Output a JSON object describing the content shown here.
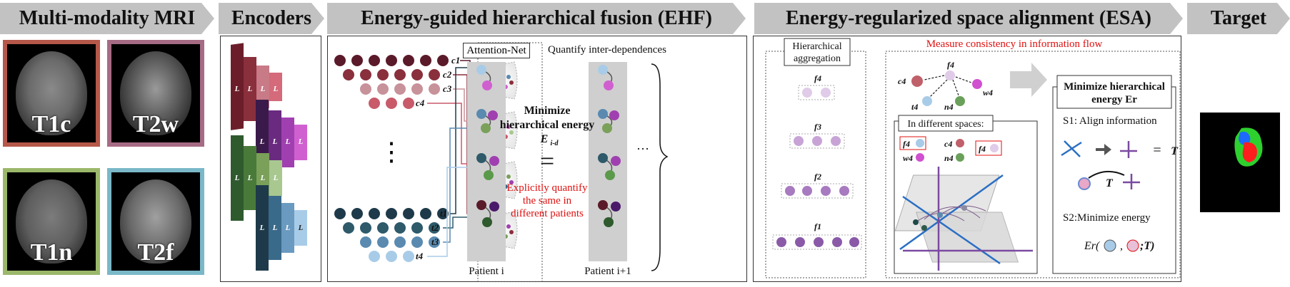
{
  "headers": {
    "mri": "Multi-modality MRI",
    "encoders": "Encoders",
    "ehf": "Energy-guided hierarchical fusion (EHF)",
    "esa": "Energy-regularized space alignment (ESA)",
    "target": "Target"
  },
  "modalities": [
    "T1c",
    "T2w",
    "T1n",
    "T2f"
  ],
  "modality_colors": [
    "#b5584a",
    "#a66b84",
    "#9bb86a",
    "#7ab8c8"
  ],
  "encoder_label": "L",
  "encoder_levels": [
    "1",
    "2",
    "3",
    "4"
  ],
  "ehf": {
    "attention_net": "Attention-Net",
    "quantify": "Quantify inter-dependences",
    "minimize_line1": "Minimize",
    "minimize_line2": "hierarchical energy",
    "energy_symbol": "E",
    "energy_sub": "i-d",
    "equals": "=",
    "explicit_line1": "Explicitly quantify",
    "explicit_line2": "the same in",
    "explicit_line3": "different patients",
    "patient_i": "Patient i",
    "patient_i1": "Patient i+1",
    "ellipsis": "…",
    "vdots": "⋮",
    "labels_c": [
      "c1",
      "c2",
      "c3",
      "c4"
    ],
    "labels_t": [
      "t1",
      "t2",
      "t3",
      "t4"
    ]
  },
  "esa": {
    "hier_line1": "Hierarchical",
    "hier_line2": "aggregation",
    "f_labels": [
      "f4",
      "f3",
      "f2",
      "f1"
    ],
    "measure": "Measure consistency in information flow",
    "graph_f4": "f4",
    "graph_c4": "c4",
    "graph_w4": "w4",
    "graph_t4": "t4",
    "graph_n4": "n4",
    "different_spaces": "In different spaces:",
    "ds_f4": "f4",
    "ds_w4": "w4",
    "ds_c4": "c4",
    "ds_n4": "n4",
    "ds_f4b": "f4",
    "minimize_line1": "Minimize hierarchical",
    "minimize_line2": "energy Er",
    "s1": "S1: Align information",
    "s2": "S2:Minimize energy",
    "T": "T",
    "eq": "=",
    "er_prefix": "Er(",
    "er_comma": ",",
    "er_suffix": ";T)"
  },
  "colors": {
    "header_bg": "#c2c2c2",
    "accent_red": "#e01010",
    "gray_column": "#cfcfcf",
    "purple": "#8e5aa8",
    "blue": "#3a6fc4"
  }
}
